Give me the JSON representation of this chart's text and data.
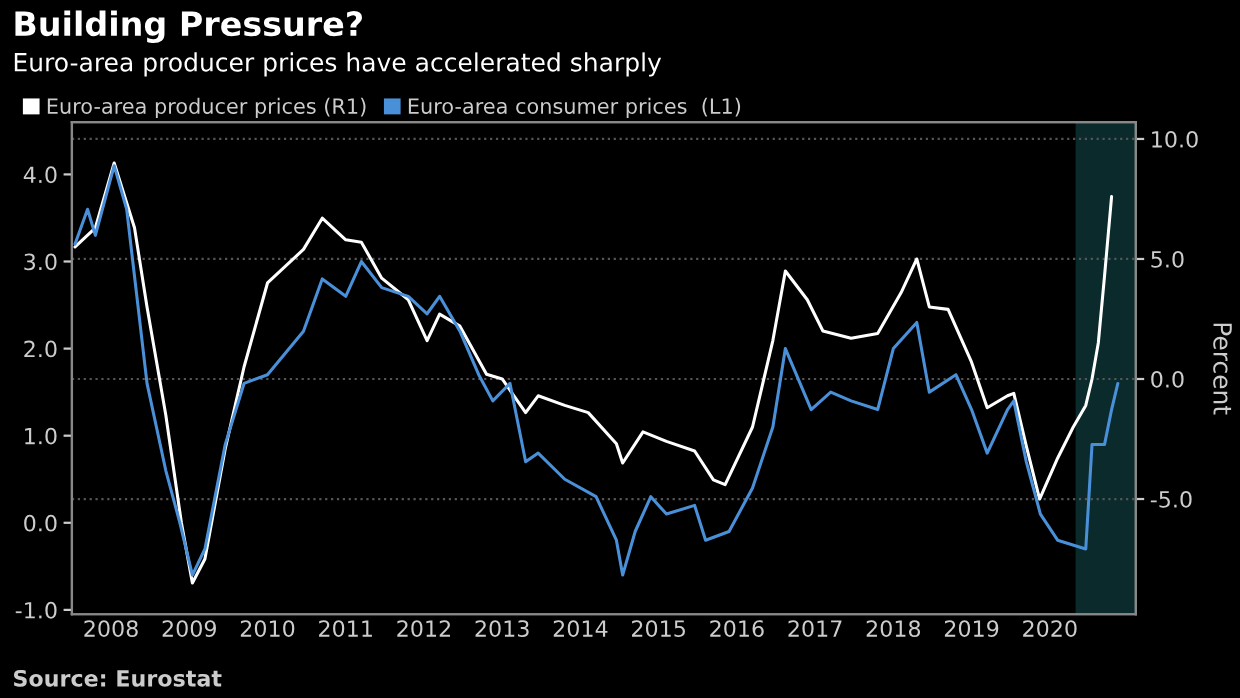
{
  "chart_data": {
    "type": "line",
    "title": "Building Pressure?",
    "subtitle": "Euro-area producer prices have accelerated sharply",
    "y2label": "Percent",
    "annotations": [
      "Source: Eurostat"
    ],
    "series": [
      {
        "name": "Euro-area producer prices (R1)",
        "color": "#ffffff",
        "axis": "y2",
        "x": [
          2008.04,
          2008.3,
          2008.54,
          2008.8,
          2008.96,
          2009.2,
          2009.4,
          2009.54,
          2009.7,
          2009.96,
          2010.2,
          2010.5,
          2010.96,
          2011.2,
          2011.5,
          2011.7,
          2011.96,
          2012.3,
          2012.54,
          2012.7,
          2012.96,
          2013.3,
          2013.5,
          2013.8,
          2013.96,
          2014.3,
          2014.6,
          2014.96,
          2015.04,
          2015.3,
          2015.6,
          2015.96,
          2016.2,
          2016.35,
          2016.7,
          2016.96,
          2017.12,
          2017.4,
          2017.6,
          2017.96,
          2018.3,
          2018.6,
          2018.8,
          2018.96,
          2019.2,
          2019.5,
          2019.7,
          2019.96,
          2020.04,
          2020.2,
          2020.37,
          2020.6,
          2020.8,
          2020.96,
          2021.04,
          2021.12,
          2021.2,
          2021.29
        ],
        "values": [
          5.5,
          6.3,
          9.0,
          6.3,
          3.0,
          -1.5,
          -6.0,
          -8.5,
          -7.5,
          -2.9,
          0.5,
          4.0,
          5.4,
          6.7,
          5.8,
          5.7,
          4.2,
          3.3,
          1.6,
          2.7,
          2.2,
          0.2,
          0.0,
          -1.4,
          -0.7,
          -1.1,
          -1.4,
          -2.7,
          -3.5,
          -2.2,
          -2.6,
          -3.0,
          -4.2,
          -4.4,
          -2.0,
          1.6,
          4.5,
          3.3,
          2.0,
          1.7,
          1.9,
          3.6,
          5.0,
          3.0,
          2.9,
          0.7,
          -1.2,
          -0.7,
          -0.6,
          -2.8,
          -5.0,
          -3.3,
          -2.0,
          -1.1,
          0.0,
          1.5,
          4.3,
          7.6
        ]
      },
      {
        "name": "Euro-area consumer prices  (L1)",
        "color": "#4a90d9",
        "axis": "y",
        "x": [
          2008.04,
          2008.2,
          2008.3,
          2008.54,
          2008.7,
          2008.96,
          2009.2,
          2009.38,
          2009.54,
          2009.7,
          2009.96,
          2010.2,
          2010.5,
          2010.96,
          2011.2,
          2011.5,
          2011.7,
          2011.96,
          2012.3,
          2012.54,
          2012.7,
          2012.96,
          2013.2,
          2013.38,
          2013.6,
          2013.8,
          2013.96,
          2014.3,
          2014.7,
          2014.96,
          2015.04,
          2015.2,
          2015.4,
          2015.6,
          2015.96,
          2016.1,
          2016.4,
          2016.7,
          2016.96,
          2017.12,
          2017.45,
          2017.7,
          2017.96,
          2018.3,
          2018.5,
          2018.8,
          2018.96,
          2019.3,
          2019.5,
          2019.7,
          2019.96,
          2020.04,
          2020.2,
          2020.38,
          2020.6,
          2020.96,
          2021.04,
          2021.2,
          2021.29,
          2021.37
        ],
        "values": [
          3.2,
          3.6,
          3.3,
          4.1,
          3.6,
          1.6,
          0.6,
          0.0,
          -0.6,
          -0.3,
          0.9,
          1.6,
          1.7,
          2.2,
          2.8,
          2.6,
          3.0,
          2.7,
          2.6,
          2.4,
          2.6,
          2.2,
          1.7,
          1.4,
          1.6,
          0.7,
          0.8,
          0.5,
          0.3,
          -0.2,
          -0.6,
          -0.1,
          0.3,
          0.1,
          0.2,
          -0.2,
          -0.1,
          0.4,
          1.1,
          2.0,
          1.3,
          1.5,
          1.4,
          1.3,
          2.0,
          2.3,
          1.5,
          1.7,
          1.3,
          0.8,
          1.3,
          1.4,
          0.7,
          0.1,
          -0.2,
          -0.3,
          0.9,
          0.9,
          1.3,
          1.6
        ]
      }
    ],
    "xlim": [
      2008.0,
      2021.6
    ],
    "xticks": [
      {
        "value": 2008.5,
        "label": "2008"
      },
      {
        "value": 2009.5,
        "label": "2009"
      },
      {
        "value": 2010.5,
        "label": "2010"
      },
      {
        "value": 2011.5,
        "label": "2011"
      },
      {
        "value": 2012.5,
        "label": "2012"
      },
      {
        "value": 2013.5,
        "label": "2013"
      },
      {
        "value": 2014.5,
        "label": "2014"
      },
      {
        "value": 2015.5,
        "label": "2015"
      },
      {
        "value": 2016.5,
        "label": "2016"
      },
      {
        "value": 2017.5,
        "label": "2017"
      },
      {
        "value": 2018.5,
        "label": "2018"
      },
      {
        "value": 2019.5,
        "label": "2019"
      },
      {
        "value": 2020.5,
        "label": "2020"
      }
    ],
    "ylim": [
      -1.05,
      4.6
    ],
    "yticks": [
      {
        "value": -1,
        "label": "-1.0"
      },
      {
        "value": 0,
        "label": "0.0"
      },
      {
        "value": 1,
        "label": "1.0"
      },
      {
        "value": 2,
        "label": "2.0"
      },
      {
        "value": 3,
        "label": "3.0"
      },
      {
        "value": 4,
        "label": "4.0"
      }
    ],
    "y2lim": [
      -9.8,
      10.7
    ],
    "y2ticks": [
      {
        "value": -5,
        "label": "-5.0"
      },
      {
        "value": 0,
        "label": "0.0"
      },
      {
        "value": 5,
        "label": "5.0"
      },
      {
        "value": 10,
        "label": "10.0"
      }
    ],
    "bands": [
      {
        "axis": "x",
        "from": 2020.83,
        "to": 2021.6,
        "label": null,
        "color": "#0b2a2c"
      }
    ],
    "grid": "y",
    "legend": "top left",
    "marker": "none",
    "line_style": "solid"
  }
}
